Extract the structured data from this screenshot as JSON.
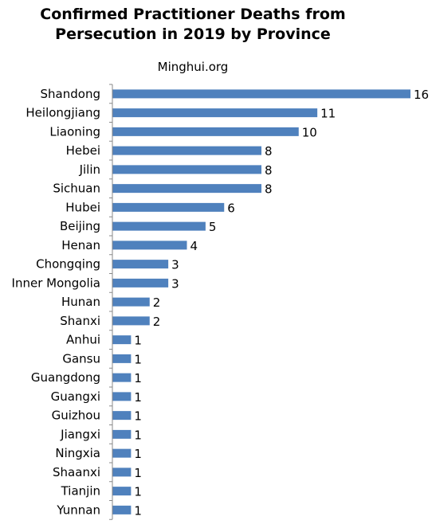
{
  "chart_data": {
    "type": "bar",
    "orientation": "horizontal",
    "title_lines": [
      "Confirmed Practitioner Deaths from",
      "Persecution in 2019 by Province"
    ],
    "subtitle": "Minghui.org",
    "categories": [
      "Shandong",
      "Heilongjiang",
      "Liaoning",
      "Hebei",
      "Jilin",
      "Sichuan",
      "Hubei",
      "Beijing",
      "Henan",
      "Chongqing",
      "Inner Mongolia",
      "Hunan",
      "Shanxi",
      "Anhui",
      "Gansu",
      "Guangdong",
      "Guangxi",
      "Guizhou",
      "Jiangxi",
      "Ningxia",
      "Shaanxi",
      "Tianjin",
      "Yunnan"
    ],
    "values": [
      16,
      11,
      10,
      8,
      8,
      8,
      6,
      5,
      4,
      3,
      3,
      2,
      2,
      1,
      1,
      1,
      1,
      1,
      1,
      1,
      1,
      1,
      1
    ],
    "xlim": [
      0,
      16
    ],
    "bar_color": "#4f81bd",
    "axis_color": "#888888",
    "data_labels": true,
    "grid": false,
    "legend": "none"
  }
}
